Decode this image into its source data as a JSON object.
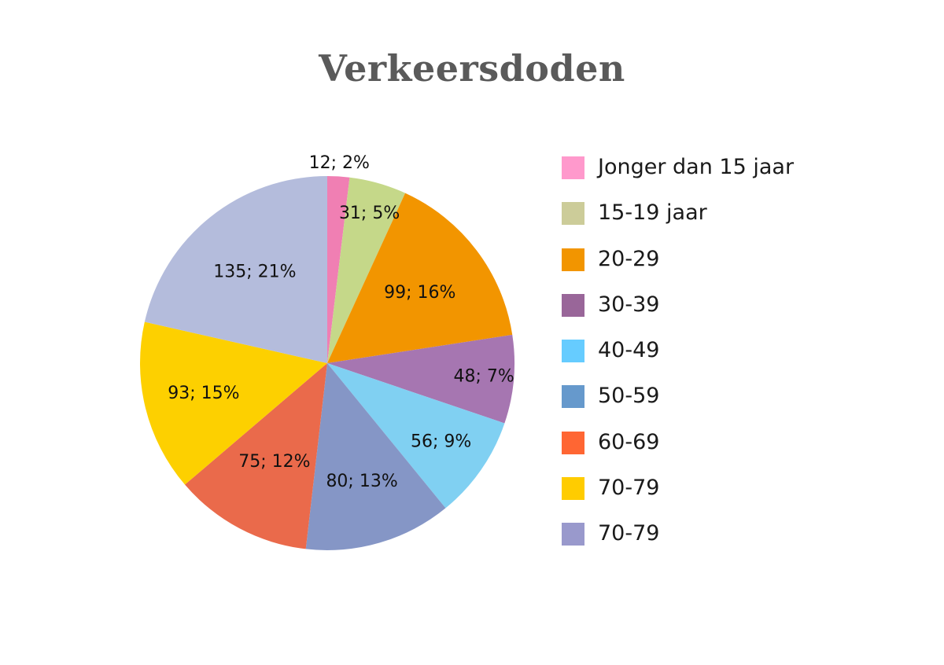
{
  "chart_data": {
    "type": "pie",
    "title": "Verkeersdoden",
    "slices": [
      {
        "label": "Jonger dan 15 jaar",
        "value": 12,
        "percent": 2,
        "data_label": "12; 2%",
        "color": "#F07FB3"
      },
      {
        "label": "15-19 jaar",
        "value": 31,
        "percent": 5,
        "data_label": "31; 5%",
        "color": "#C5D889"
      },
      {
        "label": "20-29",
        "value": 99,
        "percent": 16,
        "data_label": "99; 16%",
        "color": "#F29500"
      },
      {
        "label": "30-39",
        "value": 48,
        "percent": 7,
        "data_label": "48; 7%",
        "color": "#A676B1"
      },
      {
        "label": "40-49",
        "value": 56,
        "percent": 9,
        "data_label": "56; 9%",
        "color": "#80D0F2"
      },
      {
        "label": "50-59",
        "value": 80,
        "percent": 13,
        "data_label": "80; 13%",
        "color": "#8596C6"
      },
      {
        "label": "60-69",
        "value": 75,
        "percent": 12,
        "data_label": "75; 12%",
        "color": "#EA6A4B"
      },
      {
        "label": "70-79",
        "value": 93,
        "percent": 15,
        "data_label": "93; 15%",
        "color": "#FDD000"
      },
      {
        "label": "70-79",
        "value": 135,
        "percent": 21,
        "data_label": "135; 21%",
        "color": "#B4BCDC"
      }
    ],
    "legend": {
      "placement": "right",
      "entries": [
        {
          "label": "Jonger dan 15 jaar",
          "color": "#FF99CC"
        },
        {
          "label": "15-19 jaar",
          "color": "#CCCC99"
        },
        {
          "label": "20-29",
          "color": "#F29500"
        },
        {
          "label": "30-39",
          "color": "#996699"
        },
        {
          "label": "40-49",
          "color": "#66CCFF"
        },
        {
          "label": "50-59",
          "color": "#6699CC"
        },
        {
          "label": "60-69",
          "color": "#FF6633"
        },
        {
          "label": "70-79",
          "color": "#FFCC00"
        },
        {
          "label": "70-79",
          "color": "#9999CC"
        }
      ]
    }
  }
}
